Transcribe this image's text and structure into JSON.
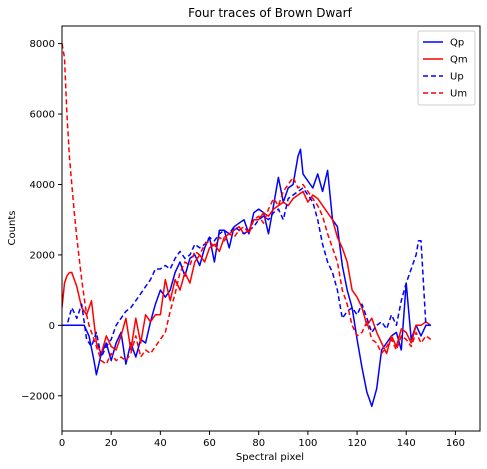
{
  "chart_data": {
    "type": "line",
    "title": "Four traces of Brown Dwarf",
    "xlabel": "Spectral pixel",
    "ylabel": "Counts",
    "xlim": [
      0,
      170
    ],
    "ylim": [
      -3000,
      8500
    ],
    "x_ticks": [
      0,
      20,
      40,
      60,
      80,
      100,
      120,
      140,
      160
    ],
    "x_tick_labels": [
      "0",
      "20",
      "40",
      "60",
      "80",
      "100",
      "120",
      "140",
      "160"
    ],
    "y_ticks": [
      -2000,
      0,
      2000,
      4000,
      6000,
      8000
    ],
    "y_tick_labels": [
      "−2000",
      "0",
      "2000",
      "4000",
      "6000",
      "8000"
    ],
    "grid": false,
    "legend_position": "top-right",
    "series": [
      {
        "name": "Qp",
        "color": "#0000ff",
        "dash": "solid",
        "x": [
          0,
          3,
          6,
          9,
          11,
          13,
          14,
          16,
          18,
          20,
          22,
          24,
          26,
          28,
          30,
          32,
          34,
          36,
          38,
          40,
          42,
          44,
          46,
          48,
          50,
          52,
          54,
          56,
          58,
          60,
          62,
          64,
          66,
          68,
          70,
          72,
          74,
          76,
          78,
          80,
          82,
          84,
          86,
          88,
          90,
          92,
          94,
          96,
          97,
          98,
          100,
          102,
          104,
          106,
          108,
          110,
          112,
          114,
          116,
          118,
          120,
          122,
          124,
          125,
          126,
          128,
          130,
          132,
          134,
          136,
          138,
          140,
          142,
          144,
          146,
          148,
          150
        ],
        "values": [
          0,
          0,
          0,
          0,
          -300,
          -1000,
          -1400,
          -800,
          -500,
          -1000,
          -500,
          -200,
          -1100,
          -500,
          -900,
          -400,
          -500,
          100,
          600,
          1000,
          800,
          1000,
          1500,
          1800,
          1400,
          1900,
          2000,
          1700,
          2200,
          2500,
          1800,
          2700,
          2700,
          2200,
          2800,
          2900,
          3000,
          2600,
          3200,
          3300,
          3200,
          2600,
          3400,
          4200,
          3500,
          3900,
          4000,
          4800,
          5000,
          4300,
          4100,
          3900,
          4300,
          3800,
          4400,
          3000,
          2800,
          1700,
          1000,
          500,
          -400,
          -1200,
          -1900,
          -2100,
          -2300,
          -1800,
          -700,
          -500,
          -300,
          -200,
          -700,
          1200,
          -400,
          0,
          -300,
          0,
          0
        ]
      },
      {
        "name": "Qm",
        "color": "#ff0000",
        "dash": "solid",
        "x": [
          0,
          1,
          2,
          3,
          4,
          6,
          8,
          10,
          12,
          14,
          16,
          18,
          20,
          22,
          24,
          26,
          28,
          30,
          32,
          34,
          36,
          38,
          40,
          42,
          44,
          46,
          48,
          50,
          52,
          54,
          56,
          58,
          60,
          62,
          64,
          66,
          68,
          70,
          72,
          74,
          76,
          78,
          80,
          82,
          84,
          86,
          88,
          90,
          92,
          94,
          96,
          98,
          100,
          102,
          104,
          106,
          108,
          110,
          112,
          114,
          116,
          118,
          120,
          122,
          124,
          126,
          128,
          130,
          132,
          134,
          136,
          138,
          140,
          142,
          144,
          146,
          148,
          150
        ],
        "values": [
          500,
          1200,
          1400,
          1500,
          1500,
          1100,
          500,
          300,
          700,
          -500,
          -800,
          -300,
          -600,
          -700,
          -300,
          200,
          -700,
          200,
          -500,
          300,
          100,
          300,
          300,
          1300,
          700,
          1300,
          1000,
          1500,
          1200,
          1800,
          2000,
          1800,
          2200,
          2300,
          2100,
          2500,
          2600,
          2700,
          2800,
          2600,
          2700,
          3000,
          3000,
          3200,
          3100,
          3300,
          3400,
          3500,
          3400,
          3600,
          3700,
          3800,
          3500,
          3700,
          3600,
          3400,
          3200,
          3000,
          2500,
          2200,
          1800,
          1000,
          800,
          500,
          0,
          200,
          -200,
          -500,
          -800,
          -300,
          -600,
          -100,
          -200,
          -500,
          0,
          0,
          100,
          0
        ]
      },
      {
        "name": "Up",
        "color": "#0000ff",
        "dash": "dashed",
        "x": [
          0,
          2,
          4,
          6,
          8,
          10,
          12,
          14,
          16,
          18,
          20,
          22,
          24,
          26,
          28,
          30,
          32,
          34,
          36,
          38,
          40,
          42,
          44,
          46,
          48,
          50,
          52,
          54,
          56,
          58,
          60,
          62,
          64,
          66,
          68,
          70,
          72,
          74,
          76,
          78,
          80,
          82,
          84,
          86,
          88,
          90,
          92,
          94,
          96,
          98,
          100,
          102,
          104,
          106,
          108,
          110,
          112,
          114,
          116,
          118,
          120,
          122,
          124,
          126,
          128,
          130,
          132,
          134,
          136,
          138,
          140,
          142,
          144,
          145,
          146,
          148,
          150
        ],
        "values": [
          0,
          0,
          500,
          200,
          600,
          -400,
          -600,
          -200,
          -900,
          -600,
          -400,
          0,
          200,
          400,
          500,
          700,
          900,
          1100,
          1300,
          1600,
          1600,
          1700,
          1600,
          1900,
          2100,
          1900,
          2000,
          2300,
          2200,
          2300,
          2500,
          2400,
          2600,
          2700,
          2600,
          2800,
          2700,
          2600,
          2700,
          2800,
          3000,
          3100,
          3000,
          3200,
          3300,
          3000,
          3600,
          3700,
          3800,
          3900,
          3700,
          3500,
          3000,
          2300,
          1800,
          1500,
          1000,
          200,
          400,
          500,
          300,
          600,
          200,
          -200,
          0,
          100,
          -100,
          300,
          0,
          700,
          1200,
          1600,
          2000,
          2400,
          2400,
          0,
          0
        ]
      },
      {
        "name": "Um",
        "color": "#ff0000",
        "dash": "dashed",
        "x": [
          0,
          1,
          2,
          3,
          4,
          5,
          6,
          7,
          8,
          9,
          10,
          11,
          12,
          14,
          16,
          18,
          20,
          22,
          24,
          26,
          28,
          30,
          32,
          34,
          36,
          38,
          40,
          42,
          44,
          46,
          48,
          50,
          52,
          54,
          56,
          58,
          60,
          62,
          64,
          66,
          68,
          70,
          72,
          74,
          76,
          78,
          80,
          82,
          84,
          86,
          88,
          90,
          92,
          94,
          96,
          98,
          100,
          102,
          104,
          106,
          108,
          110,
          112,
          114,
          116,
          118,
          120,
          122,
          124,
          126,
          128,
          130,
          132,
          134,
          136,
          138,
          140,
          142,
          144,
          146,
          148,
          150
        ],
        "values": [
          8000,
          7600,
          6000,
          4800,
          4000,
          3200,
          2500,
          1900,
          1300,
          800,
          300,
          0,
          -200,
          -600,
          -1000,
          -1100,
          -800,
          -1000,
          -900,
          -1000,
          -800,
          -300,
          -900,
          -700,
          -800,
          -600,
          -400,
          -200,
          400,
          900,
          1500,
          1800,
          1700,
          2100,
          2000,
          2300,
          2400,
          2200,
          2500,
          2400,
          2600,
          2500,
          2700,
          2800,
          2600,
          3000,
          3100,
          2900,
          3300,
          3600,
          3400,
          3800,
          4000,
          4200,
          3900,
          4000,
          3800,
          3600,
          3400,
          3100,
          2600,
          2200,
          1800,
          1000,
          600,
          0,
          -300,
          -200,
          100,
          -400,
          -500,
          -800,
          -600,
          -400,
          -700,
          -300,
          -400,
          -600,
          -200,
          -500,
          -300,
          -400
        ]
      }
    ]
  }
}
